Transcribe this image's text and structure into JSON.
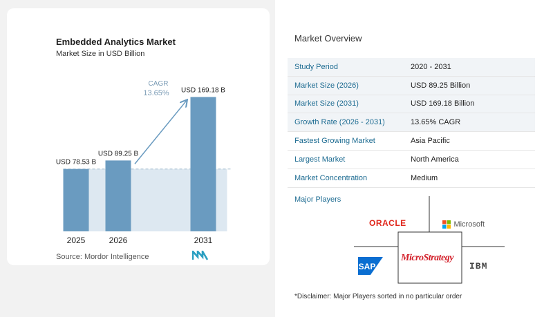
{
  "chart": {
    "title": "Embedded Analytics Market",
    "subtitle": "Market Size in USD Billion",
    "source": "Source:  Mordor Intelligence",
    "cagr_label": "CAGR",
    "cagr_value": "13.65%"
  },
  "chart_data": {
    "type": "bar",
    "categories": [
      "2025",
      "2026",
      "2031"
    ],
    "values": [
      78.53,
      89.25,
      169.18
    ],
    "value_labels": [
      "USD 78.53 B",
      "USD 89.25 B",
      "USD 169.18 B"
    ],
    "title": "Embedded Analytics Market",
    "subtitle": "Market Size in USD Billion",
    "xlabel": "",
    "ylabel": "",
    "ylim": [
      0,
      180
    ],
    "grid": false,
    "bar_color": "#6a9bc0",
    "baseline_fill": "#dde8f1"
  },
  "overview": {
    "title": "Market Overview",
    "rows": [
      {
        "label": "Study Period",
        "value": "2020 - 2031"
      },
      {
        "label": "Market Size (2026)",
        "value": "USD 89.25 Billion"
      },
      {
        "label": "Market Size (2031)",
        "value": "USD 169.18 Billion"
      },
      {
        "label": "Growth Rate (2026 - 2031)",
        "value": "13.65% CAGR"
      },
      {
        "label": "Fastest Growing Market",
        "value": "Asia Pacific"
      },
      {
        "label": "Largest Market",
        "value": "North America"
      },
      {
        "label": "Market Concentration",
        "value": "Medium"
      }
    ]
  },
  "players": {
    "title": "Major Players",
    "logos": [
      "ORACLE",
      "Microsoft",
      "SAP",
      "MicroStrategy",
      "IBM"
    ],
    "disclaimer": "*Disclaimer: Major Players sorted in no particular order"
  },
  "colors": {
    "accent": "#1e6c92",
    "bar": "#6a9bc0",
    "oracle": "#e0261b",
    "sap": "#0a6ed1",
    "microstrategy": "#d3202a"
  }
}
